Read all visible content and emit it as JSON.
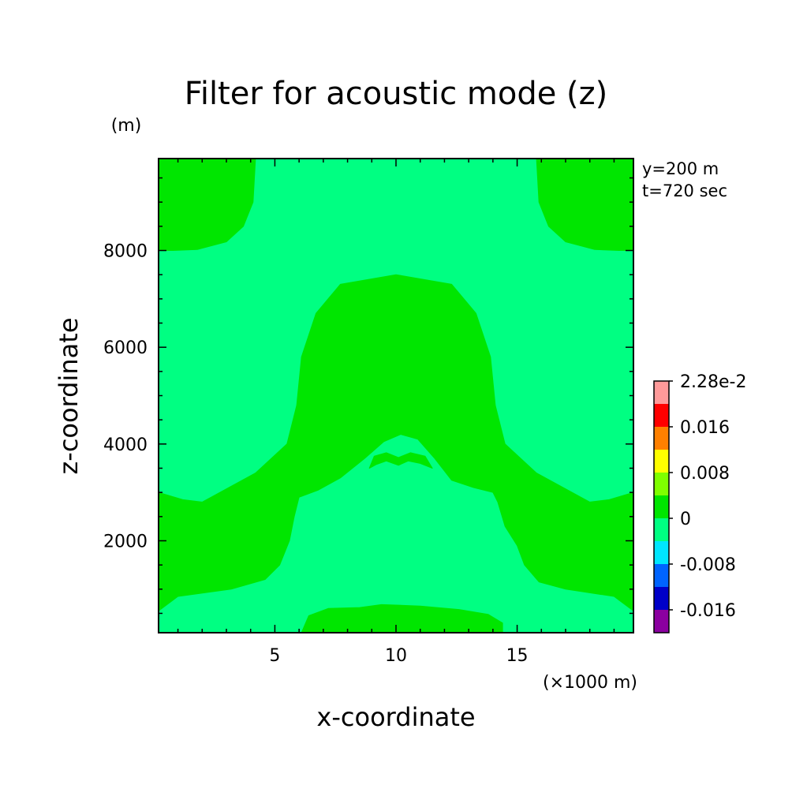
{
  "chart_data": {
    "type": "heatmap",
    "title": "Filter for acoustic mode (z)",
    "xlabel": "x-coordinate",
    "ylabel": "z-coordinate",
    "x_unit": "(×1000 m)",
    "y_unit": "(m)",
    "annotations": [
      "y=200 m",
      "t=720 sec"
    ],
    "xlim": [
      0.2,
      19.8
    ],
    "ylim": [
      100,
      9900
    ],
    "x_ticks": [
      5,
      10,
      15
    ],
    "y_ticks": [
      2000,
      4000,
      6000,
      8000
    ],
    "x_tick_labels": [
      "5",
      "10",
      "15"
    ],
    "y_tick_labels": [
      "2000",
      "4000",
      "6000",
      "8000"
    ],
    "colorbar": {
      "levels": [
        {
          "color": "#8b00a0"
        },
        {
          "color": "#0000c8"
        },
        {
          "color": "#0064ff"
        },
        {
          "color": "#00e6ff"
        },
        {
          "color": "#00ff82"
        },
        {
          "color": "#00e600"
        },
        {
          "color": "#7fff00"
        },
        {
          "color": "#ffff00"
        },
        {
          "color": "#ff8000"
        },
        {
          "color": "#ff0000"
        },
        {
          "color": "#ff9a9a"
        }
      ],
      "labels": [
        {
          "text": "-0.016",
          "boundary": 1
        },
        {
          "text": "-0.008",
          "boundary": 3
        },
        {
          "text": "0",
          "boundary": 5
        },
        {
          "text": "0.008",
          "boundary": 7
        },
        {
          "text": "0.016",
          "boundary": 9
        },
        {
          "text": "2.28e-2",
          "boundary": 11
        }
      ]
    },
    "field": {
      "background_level": "-0.008 to 0",
      "background_color": "#00ff82",
      "region_level": "0 to 0.004",
      "region_color": "#00e600",
      "regions": [
        {
          "name": "top-left-lobe",
          "points": [
            [
              0.2,
              9900
            ],
            [
              4.2,
              9900
            ],
            [
              4.1,
              9000
            ],
            [
              3.7,
              8500
            ],
            [
              3.0,
              8180
            ],
            [
              1.8,
              8020
            ],
            [
              0.8,
              8000
            ],
            [
              0.2,
              8000
            ]
          ]
        },
        {
          "name": "top-right-lobe",
          "points": [
            [
              15.8,
              9900
            ],
            [
              19.8,
              9900
            ],
            [
              19.8,
              8000
            ],
            [
              19.2,
              8000
            ],
            [
              18.2,
              8020
            ],
            [
              17.0,
              8180
            ],
            [
              16.3,
              8500
            ],
            [
              15.9,
              9000
            ]
          ]
        },
        {
          "name": "central-dome",
          "points": [
            [
              1.2,
              2850
            ],
            [
              2.0,
              2800
            ],
            [
              4.2,
              3400
            ],
            [
              5.5,
              4000
            ],
            [
              5.9,
              4800
            ],
            [
              6.1,
              5800
            ],
            [
              6.7,
              6700
            ],
            [
              7.7,
              7300
            ],
            [
              10.0,
              7500
            ],
            [
              12.3,
              7300
            ],
            [
              13.3,
              6700
            ],
            [
              13.9,
              5800
            ],
            [
              14.1,
              4800
            ],
            [
              14.5,
              4000
            ],
            [
              15.8,
              3400
            ],
            [
              18.0,
              2800
            ],
            [
              18.8,
              2850
            ],
            [
              19.8,
              3000
            ],
            [
              19.8,
              550
            ],
            [
              19.0,
              850
            ],
            [
              17.0,
              1000
            ],
            [
              15.9,
              1150
            ],
            [
              15.3,
              1500
            ],
            [
              15.0,
              1900
            ],
            [
              14.5,
              2300
            ],
            [
              14.2,
              2800
            ],
            [
              14.0,
              3000
            ],
            [
              13.2,
              3100
            ],
            [
              12.3,
              3250
            ],
            [
              11.6,
              3700
            ],
            [
              10.9,
              4100
            ],
            [
              10.2,
              4200
            ],
            [
              9.5,
              4050
            ],
            [
              8.7,
              3700
            ],
            [
              7.7,
              3300
            ],
            [
              6.8,
              3050
            ],
            [
              6.0,
              2900
            ],
            [
              5.8,
              2500
            ],
            [
              5.6,
              2000
            ],
            [
              5.2,
              1500
            ],
            [
              4.6,
              1200
            ],
            [
              3.2,
              1000
            ],
            [
              1.0,
              850
            ],
            [
              0.2,
              550
            ],
            [
              0.2,
              3000
            ]
          ]
        },
        {
          "name": "bottom-center-mound",
          "points": [
            [
              6.1,
              100
            ],
            [
              6.4,
              450
            ],
            [
              7.2,
              600
            ],
            [
              8.5,
              620
            ],
            [
              9.4,
              680
            ],
            [
              10.0,
              670
            ],
            [
              11.0,
              650
            ],
            [
              12.6,
              580
            ],
            [
              13.8,
              480
            ],
            [
              14.4,
              300
            ],
            [
              14.4,
              100
            ]
          ]
        },
        {
          "name": "center-eyebrow",
          "points": [
            [
              8.9,
              3500
            ],
            [
              9.1,
              3750
            ],
            [
              9.6,
              3820
            ],
            [
              10.1,
              3720
            ],
            [
              10.6,
              3820
            ],
            [
              11.2,
              3750
            ],
            [
              11.5,
              3500
            ],
            [
              11.0,
              3600
            ],
            [
              10.5,
              3650
            ],
            [
              10.1,
              3560
            ],
            [
              9.6,
              3650
            ],
            [
              9.2,
              3580
            ]
          ]
        }
      ]
    }
  }
}
